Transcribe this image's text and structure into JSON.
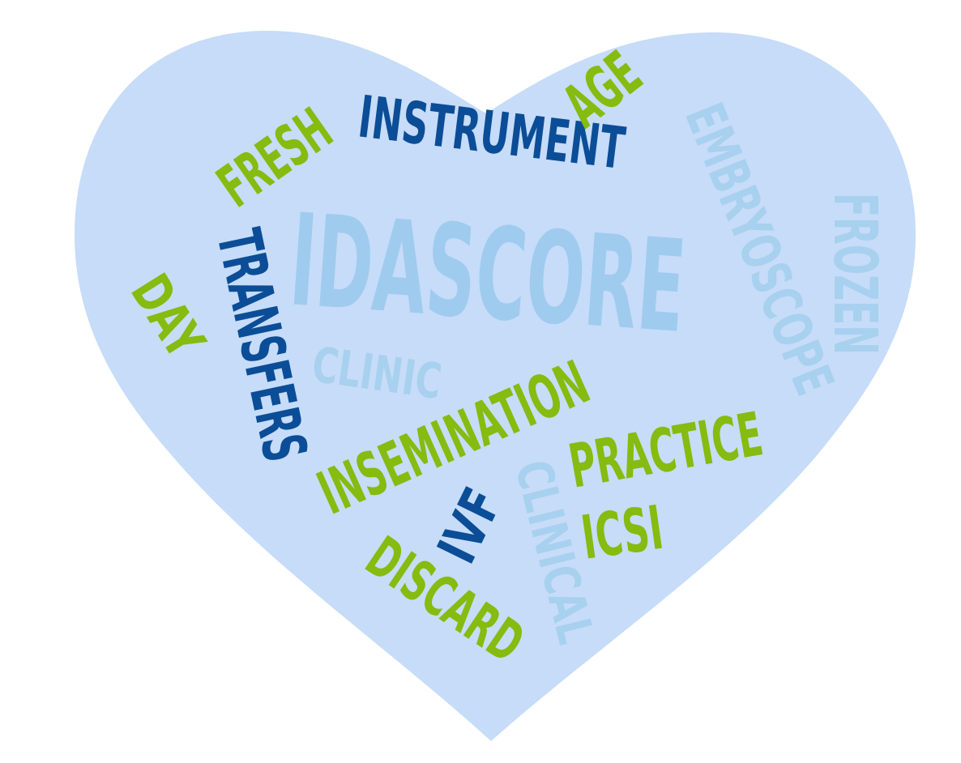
{
  "colors": {
    "background": "#ffffff",
    "heart": "#c6dcf8",
    "dark_blue": "#0b4d97",
    "green": "#86bb0f",
    "light_blue": "#9fcbee",
    "pale_blue": "#a8d0ef"
  },
  "words": {
    "idascore": "IDASCORE",
    "instrument": "INSTRUMENT",
    "fresh": "FRESH",
    "age": "AGE",
    "embryoscope": "EMBRYOSCOPE",
    "frozen": "FROZEN",
    "transfers": "TRANSFERS",
    "day": "DAY",
    "clinic": "CLINIC",
    "insemination": "INSEMINATION",
    "practice": "PRACTICE",
    "clinical": "CLINICAL",
    "ivf": "IVF",
    "icsi": "ICSI",
    "discard": "DISCARD"
  }
}
